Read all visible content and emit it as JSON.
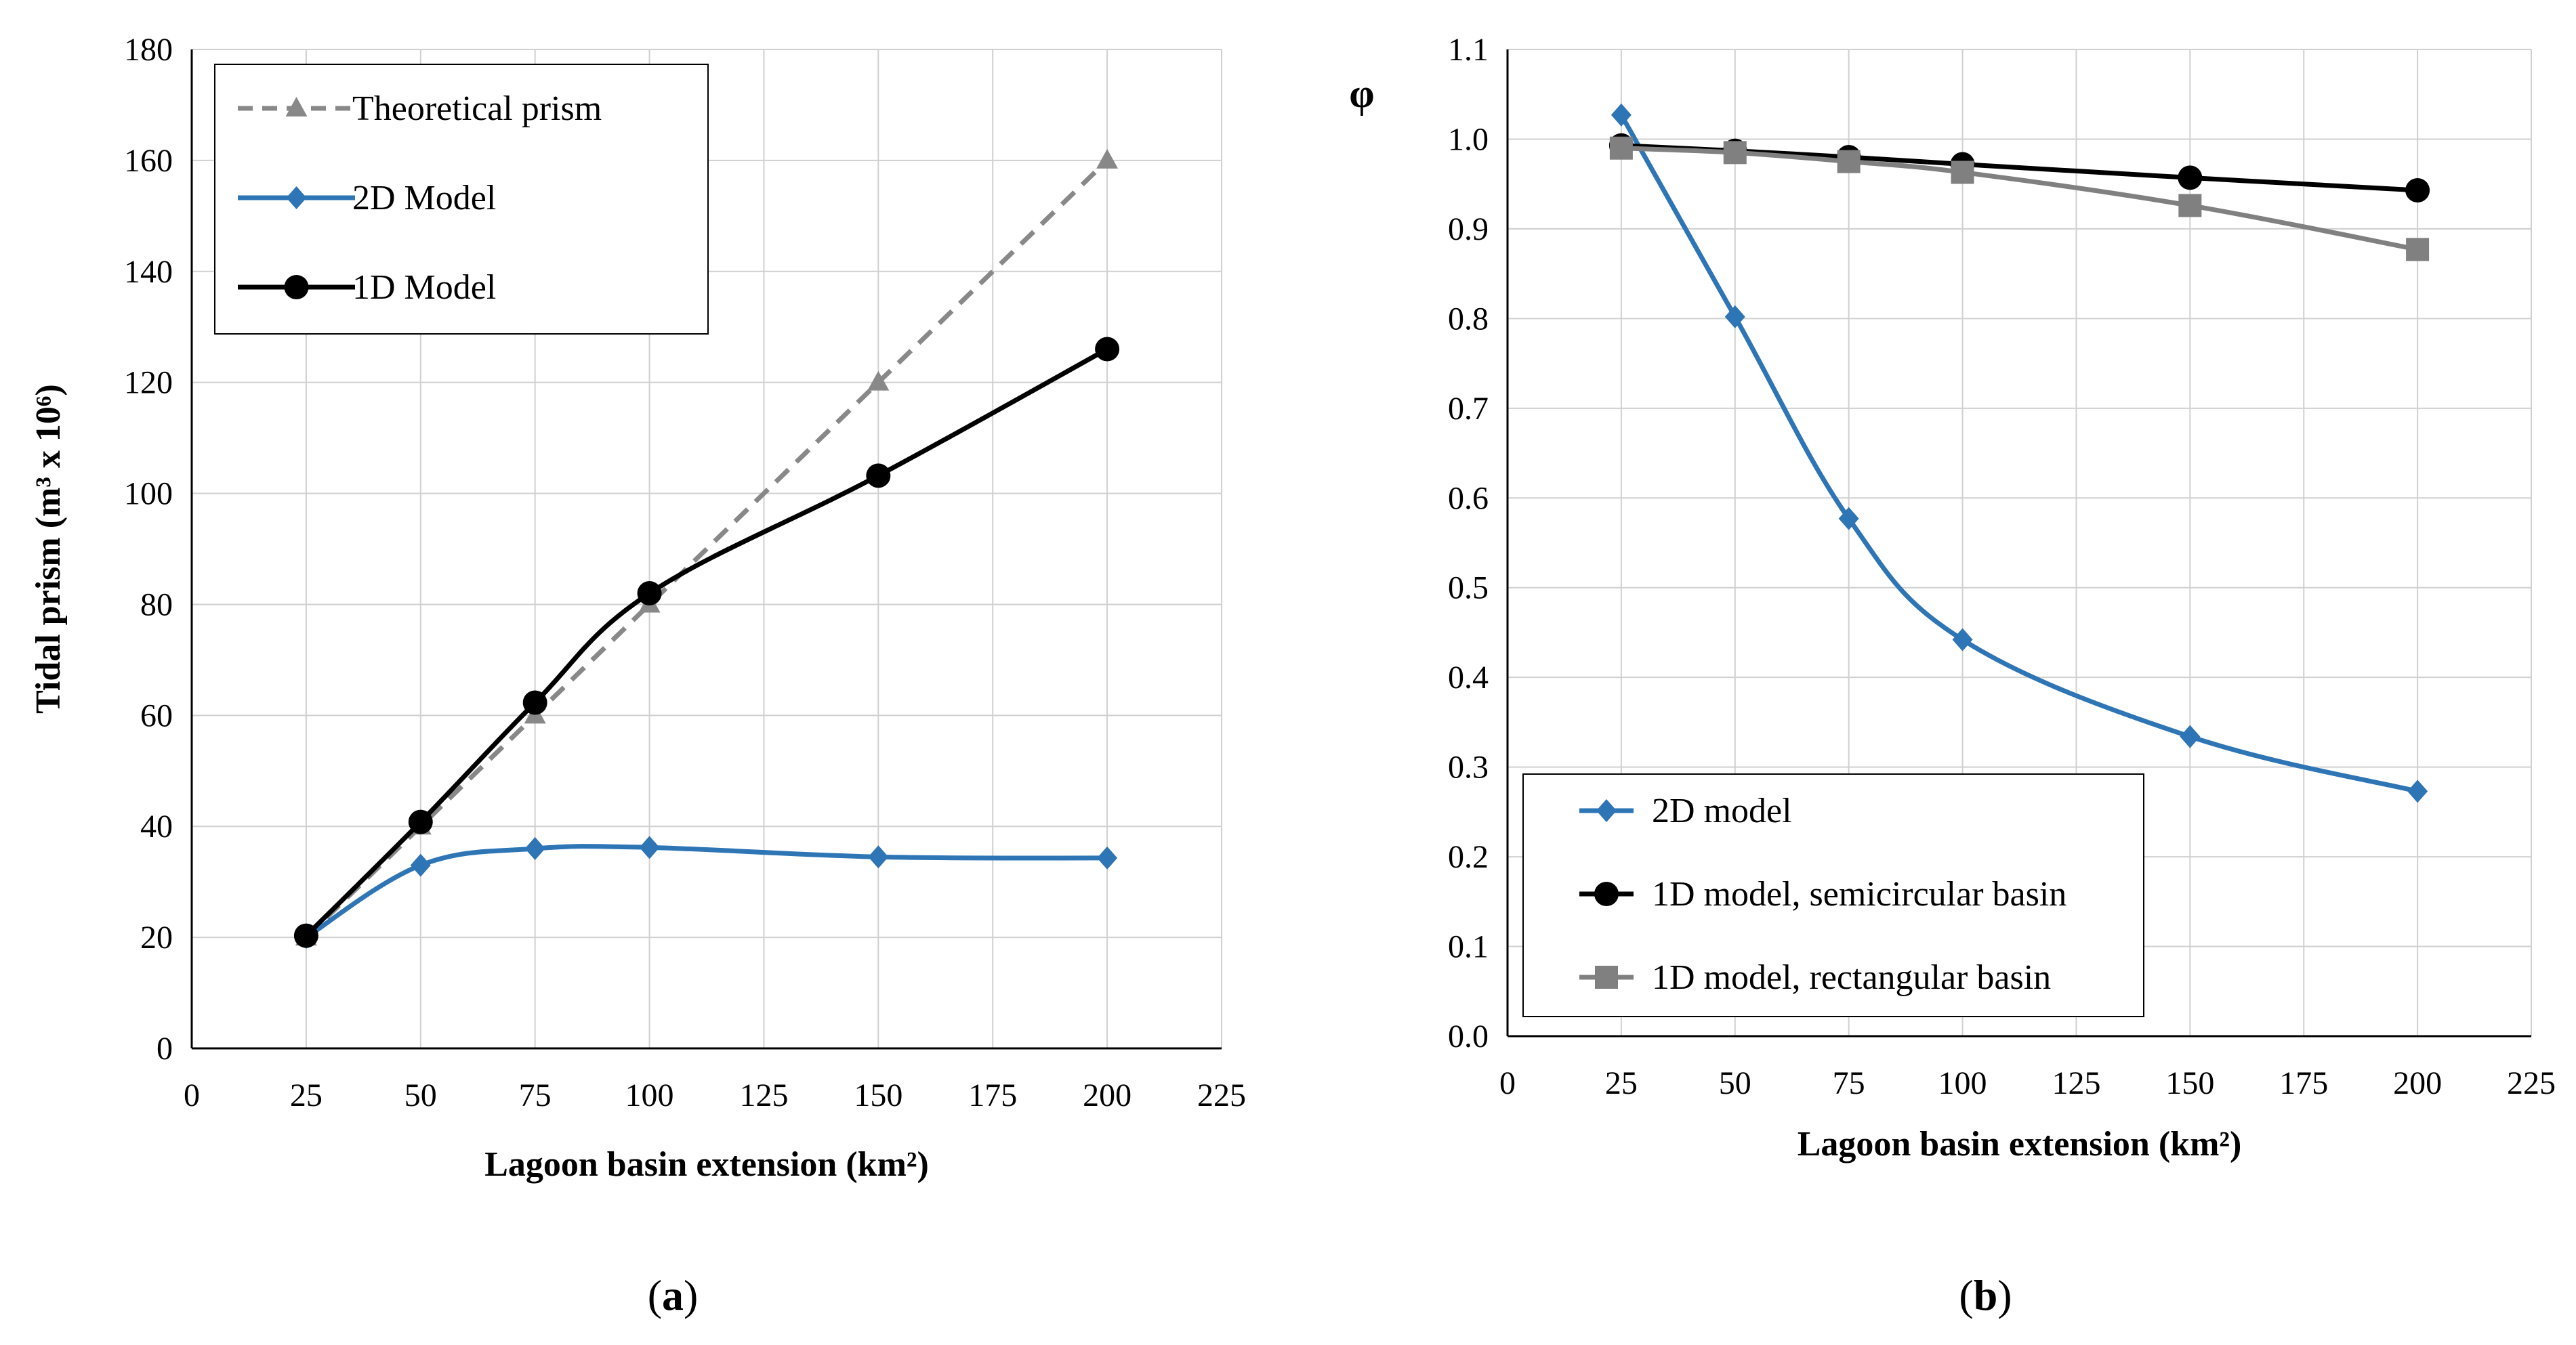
{
  "colors": {
    "blue": "#2e75b6",
    "black": "#000000",
    "gray": "#808080",
    "grid": "#d0d0d0"
  },
  "chart_data": [
    {
      "type": "line",
      "panel_label": "a",
      "title": "",
      "xlabel": "Lagoon basin extension (km²)",
      "ylabel": "Tidal prism (m³ x 10⁶)",
      "xlim": [
        0,
        225
      ],
      "ylim": [
        0,
        180
      ],
      "xticks": [
        0,
        25,
        50,
        75,
        100,
        125,
        150,
        175,
        200,
        225
      ],
      "yticks": [
        0,
        20,
        40,
        60,
        80,
        100,
        120,
        140,
        160,
        180
      ],
      "ytick_decimals": 0,
      "grid": true,
      "legend_position": "top-left",
      "series": [
        {
          "name": "Theoretical prism",
          "marker": "triangle",
          "dash": true,
          "color": "#888888",
          "x": [
            25,
            50,
            75,
            100,
            150,
            200
          ],
          "values": [
            20,
            40,
            60,
            80,
            120,
            160
          ]
        },
        {
          "name": "2D Model",
          "marker": "diamond",
          "dash": false,
          "color": "#2e75b6",
          "x": [
            25,
            50,
            75,
            100,
            150,
            200
          ],
          "values": [
            20,
            33,
            36,
            36.2,
            34.5,
            34.3
          ]
        },
        {
          "name": "1D Model",
          "marker": "circle",
          "dash": false,
          "color": "#000000",
          "x": [
            25,
            50,
            75,
            100,
            150,
            200
          ],
          "values": [
            20.3,
            40.8,
            62.3,
            82,
            103.2,
            126
          ]
        }
      ]
    },
    {
      "type": "line",
      "panel_label": "b",
      "title": "",
      "xlabel": "Lagoon basin extension (km²)",
      "ylabel": "φ",
      "xlim": [
        0,
        225
      ],
      "ylim": [
        0,
        1.1
      ],
      "xticks": [
        0,
        25,
        50,
        75,
        100,
        125,
        150,
        175,
        200,
        225
      ],
      "yticks": [
        0,
        0.1,
        0.2,
        0.3,
        0.4,
        0.5,
        0.6,
        0.7,
        0.8,
        0.9,
        1.0,
        1.1
      ],
      "ytick_decimals": 1,
      "grid": true,
      "legend_position": "bottom-left",
      "series": [
        {
          "name": "2D model",
          "marker": "diamond",
          "dash": false,
          "color": "#2e75b6",
          "x": [
            25,
            50,
            75,
            100,
            150,
            200
          ],
          "values": [
            1.027,
            0.802,
            0.577,
            0.442,
            0.334,
            0.273
          ]
        },
        {
          "name": "1D model, semicircular basin",
          "marker": "circle",
          "dash": false,
          "color": "#000000",
          "x": [
            25,
            50,
            75,
            100,
            150,
            200
          ],
          "values": [
            0.993,
            0.987,
            0.98,
            0.972,
            0.957,
            0.943
          ]
        },
        {
          "name": "1D model, rectangular basin",
          "marker": "square",
          "dash": false,
          "color": "#808080",
          "x": [
            25,
            50,
            75,
            100,
            150,
            200
          ],
          "values": [
            0.99,
            0.985,
            0.975,
            0.963,
            0.926,
            0.877
          ]
        }
      ]
    }
  ]
}
